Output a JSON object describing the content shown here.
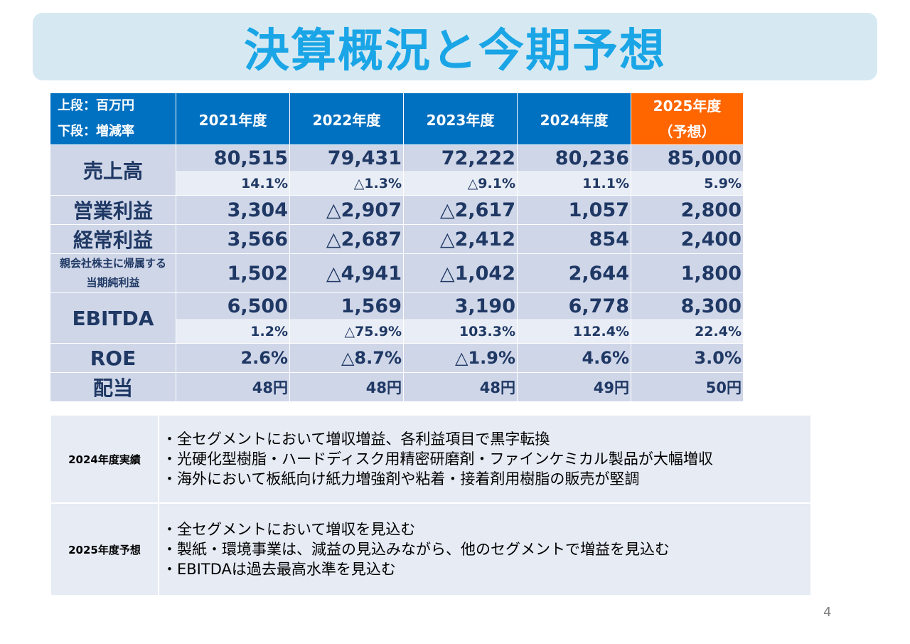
{
  "title": "決算概況と今期予想",
  "table": {
    "corner_line1": "上段：百万円",
    "corner_line2": "下段：増減率",
    "years": [
      "2021年度",
      "2022年度",
      "2023年度",
      "2024年度"
    ],
    "forecast_line1": "2025年度",
    "forecast_line2": "（予想）",
    "rows": {
      "sales": {
        "label": "売上高",
        "values": [
          "80,515",
          "79,431",
          "72,222",
          "80,236",
          "85,000"
        ],
        "rates": [
          "14.1%",
          "△1.3%",
          "△9.1%",
          "11.1%",
          "5.9%"
        ]
      },
      "op": {
        "label": "営業利益",
        "values": [
          "3,304",
          "△2,907",
          "△2,617",
          "1,057",
          "2,800"
        ]
      },
      "ord": {
        "label": "経常利益",
        "values": [
          "3,566",
          "△2,687",
          "△2,412",
          "854",
          "2,400"
        ]
      },
      "net": {
        "label_line1": "親会社株主に帰属する",
        "label_line2": "当期純利益",
        "values": [
          "1,502",
          "△4,941",
          "△1,042",
          "2,644",
          "1,800"
        ]
      },
      "ebitda": {
        "label": "EBITDA",
        "values": [
          "6,500",
          "1,569",
          "3,190",
          "6,778",
          "8,300"
        ],
        "rates": [
          "1.2%",
          "△75.9%",
          "103.3%",
          "112.4%",
          "22.4%"
        ]
      },
      "roe": {
        "label": "ROE",
        "values": [
          "2.6%",
          "△8.7%",
          "△1.9%",
          "4.6%",
          "3.0%"
        ]
      },
      "div": {
        "label": "配当",
        "values": [
          "48円",
          "48円",
          "48円",
          "49円",
          "50円"
        ]
      }
    }
  },
  "notes": [
    {
      "heading": "2024年度実績",
      "items": [
        "・全セグメントにおいて増収増益、各利益項目で黒字転換",
        "・光硬化型樹脂・ハードディスク用精密研磨剤・ファインケミカル製品が大幅増収",
        "・海外において板紙向け紙力増強剤や粘着・接着剤用樹脂の販売が堅調"
      ]
    },
    {
      "heading": "2025年度予想",
      "items": [
        "・全セグメントにおいて増収を見込む",
        "・製紙・環境事業は、減益の見込みながら、他のセグメントで増益を見込む",
        "・EBITDAは過去最高水準を見込む"
      ]
    }
  ],
  "page_number": "4"
}
